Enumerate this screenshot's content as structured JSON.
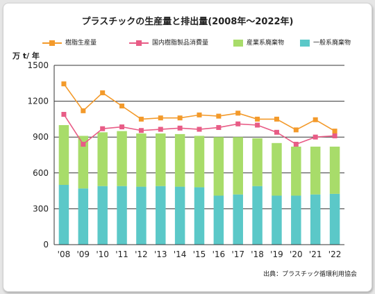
{
  "chart_data": {
    "type": "bar",
    "title": "プラスチックの生産量と排出量(2008年〜2022年)",
    "ylabel": "万 t/ 年",
    "source": "出典：プラスチック循環利用協会",
    "categories": [
      "'08",
      "'09",
      "'10",
      "'11",
      "'12",
      "'13",
      "'14",
      "'15",
      "'16",
      "'17",
      "'18",
      "'19",
      "'20",
      "'21",
      "'22"
    ],
    "ylim": [
      0,
      1500
    ],
    "yticks": [
      "0",
      "300",
      "600",
      "900",
      "1200",
      "1500"
    ],
    "grid": true,
    "legend_position": "top",
    "bar_series": [
      {
        "name": "一般系廃棄物",
        "color": "#5bc8c8",
        "values": [
          500,
          470,
          490,
          490,
          485,
          490,
          485,
          480,
          410,
          420,
          490,
          410,
          410,
          420,
          425
        ]
      },
      {
        "name": "産業系廃棄物",
        "color": "#a8dc6a",
        "values": [
          500,
          440,
          450,
          460,
          445,
          440,
          440,
          430,
          490,
          480,
          400,
          440,
          410,
          400,
          395
        ]
      }
    ],
    "line_series": [
      {
        "name": "樹脂生産量",
        "color": "#f39a2b",
        "marker": "square",
        "values": [
          1345,
          1120,
          1270,
          1160,
          1050,
          1060,
          1060,
          1085,
          1075,
          1100,
          1050,
          1050,
          960,
          1045,
          950
        ]
      },
      {
        "name": "国内樹脂製品消費量",
        "color": "#e85c86",
        "marker": "square",
        "values": [
          1090,
          840,
          970,
          985,
          955,
          965,
          975,
          965,
          980,
          1010,
          1000,
          940,
          840,
          900,
          910
        ]
      }
    ]
  }
}
